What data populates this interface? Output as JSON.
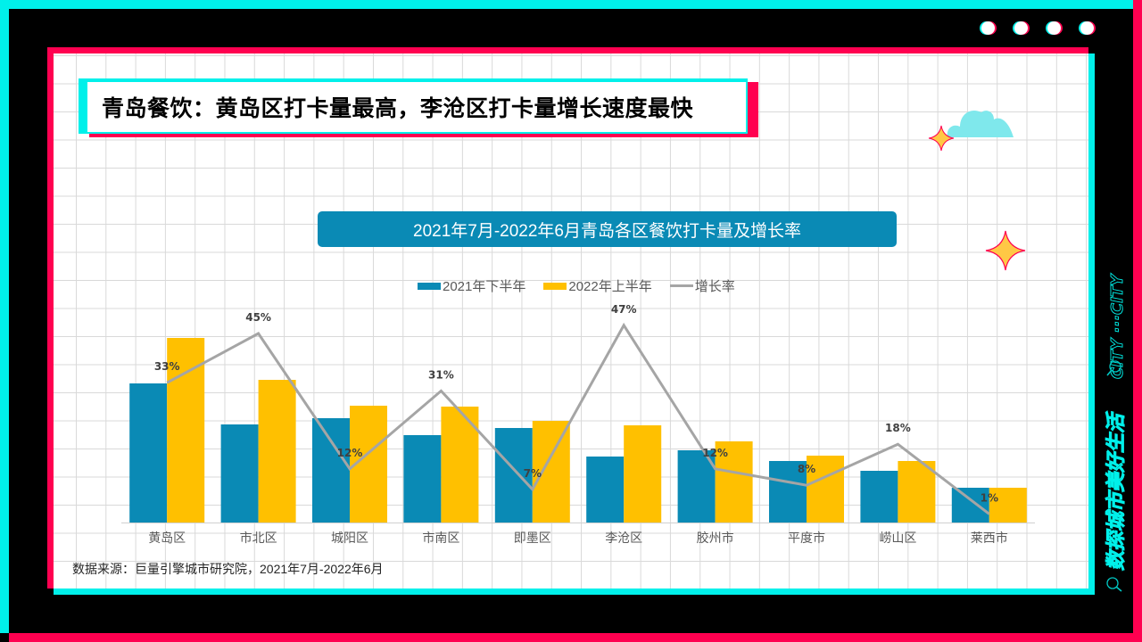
{
  "page": {
    "title": "青岛餐饮：黄岛区打卡量最高，李沧区打卡量增长速度最快",
    "source": "数据来源：巨量引擎城市研究院，2021年7月-2022年6月",
    "side_banner": "数探城市美好生活",
    "side_banner_en": "CITY ···CITY",
    "dots_count": 4
  },
  "colors": {
    "cyan": "#00F0EA",
    "red": "#FF0050",
    "blue_series": "#0A8AB5",
    "yellow_series": "#FFC000",
    "line_series": "#A5A5A5",
    "chart_title_bg": "#0A8AB5"
  },
  "icons": {
    "decor": [
      "cloud-icon",
      "sparkle-icon",
      "search-icon"
    ]
  },
  "chart_data": {
    "type": "bar",
    "title": "2021年7月-2022年6月青岛各区餐饮打卡量及增长率",
    "xlabel": "",
    "ylabel": "",
    "legend_position": "top",
    "grid": false,
    "categories": [
      "黄岛区",
      "市北区",
      "城阳区",
      "市南区",
      "即墨区",
      "李沧区",
      "胶州市",
      "平度市",
      "崂山区",
      "莱西市"
    ],
    "series": [
      {
        "name": "2021年下半年",
        "type": "bar",
        "color": "#0A8AB5",
        "values": [
          156,
          110,
          117,
          98,
          106,
          74,
          81,
          69,
          58,
          39
        ]
      },
      {
        "name": "2022年上半年",
        "type": "bar",
        "color": "#FFC000",
        "values": [
          207,
          160,
          131,
          130,
          114,
          109,
          91,
          75,
          69,
          39
        ]
      },
      {
        "name": "增长率",
        "type": "line",
        "color": "#A5A5A5",
        "values": [
          33,
          45,
          12,
          31,
          7,
          47,
          12,
          8,
          18,
          1
        ],
        "labels": [
          "33%",
          "45%",
          "12%",
          "31%",
          "7%",
          "47%",
          "12%",
          "8%",
          "18%",
          "1%"
        ]
      }
    ],
    "note": "Bar values are relative pixel-height estimates (no y-axis shown)"
  }
}
